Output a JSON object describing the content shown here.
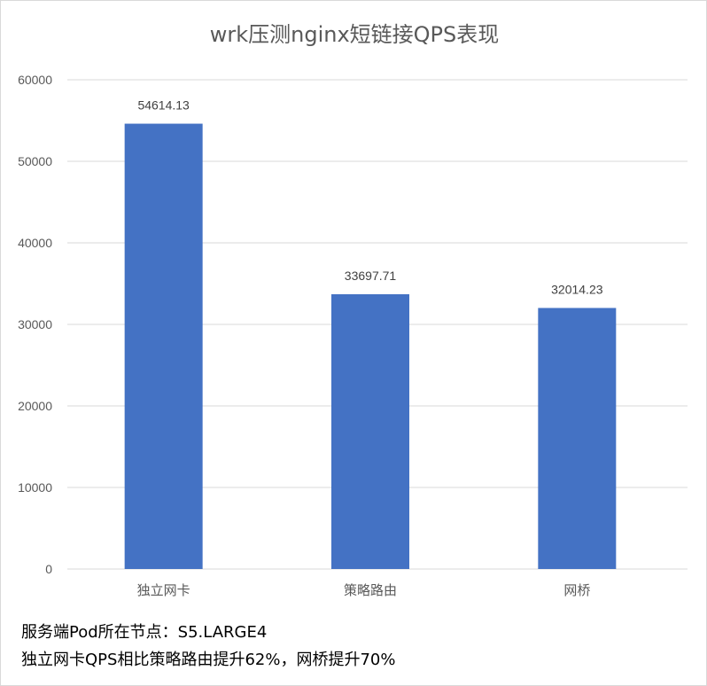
{
  "chart_data": {
    "type": "bar",
    "title": "wrk压测nginx短链接QPS表现",
    "categories": [
      "独立网卡",
      "策略路由",
      "网桥"
    ],
    "values": [
      54614.13,
      33697.71,
      32014.23
    ],
    "data_labels": [
      "54614.13",
      "33697.71",
      "32014.23"
    ],
    "xlabel": "",
    "ylabel": "",
    "ylim": [
      0,
      60000
    ],
    "yticks": [
      "0",
      "10000",
      "20000",
      "30000",
      "40000",
      "50000",
      "60000"
    ],
    "grid": true,
    "bar_color": "#4472c4"
  },
  "notes": [
    "服务端Pod所在节点：S5.LARGE4",
    "独立网卡QPS相比策略路由提升62%，网桥提升70%"
  ]
}
